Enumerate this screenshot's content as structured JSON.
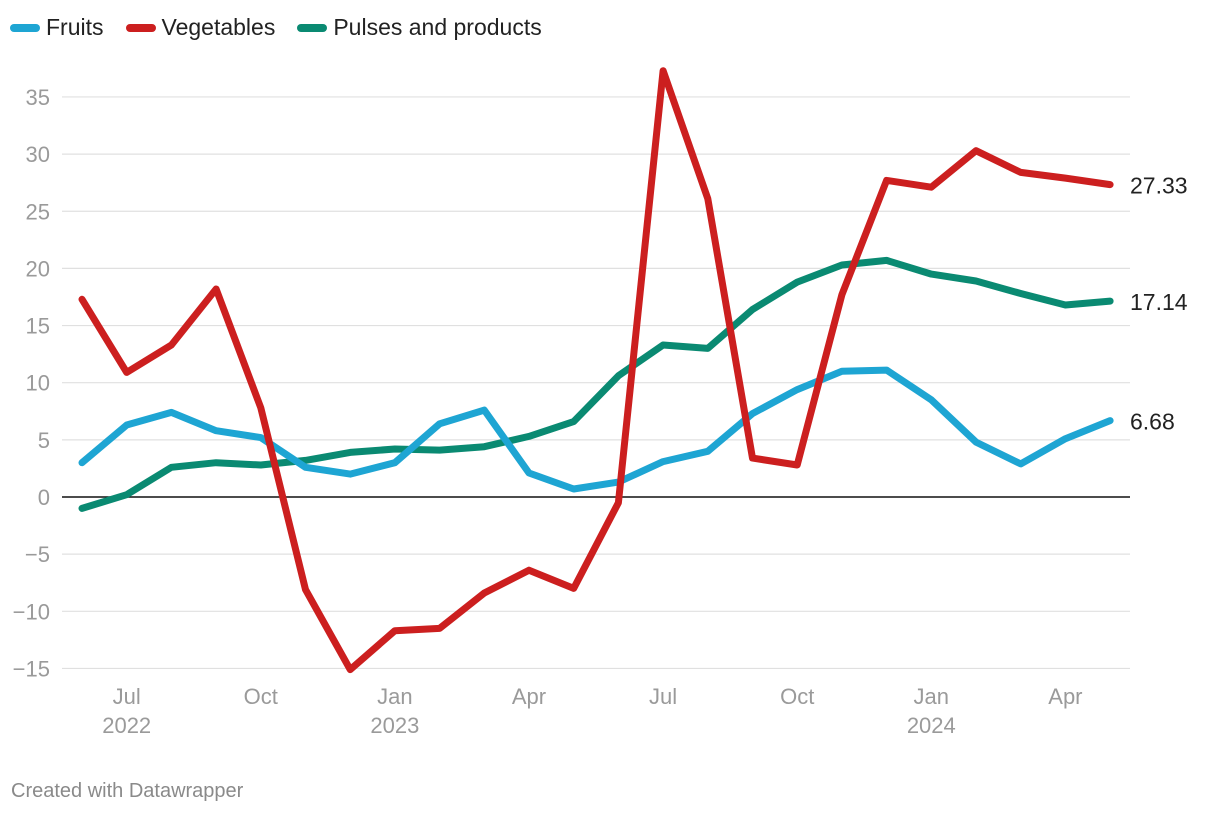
{
  "chart_data": {
    "type": "line",
    "title": "",
    "xlabel": "",
    "ylabel": "",
    "ylim": [
      -15,
      37.5
    ],
    "yticks": [
      35,
      30,
      25,
      20,
      15,
      10,
      5,
      0,
      -5,
      -10,
      -15
    ],
    "ytick_labels": [
      "35",
      "30",
      "25",
      "20",
      "15",
      "10",
      "5",
      "0",
      "−5",
      "−10",
      "−15"
    ],
    "x": [
      "2022-06",
      "2022-07",
      "2022-08",
      "2022-09",
      "2022-10",
      "2022-11",
      "2022-12",
      "2023-01",
      "2023-02",
      "2023-03",
      "2023-04",
      "2023-05",
      "2023-06",
      "2023-07",
      "2023-08",
      "2023-09",
      "2023-10",
      "2023-11",
      "2023-12",
      "2024-01",
      "2024-02",
      "2024-03",
      "2024-04",
      "2024-05"
    ],
    "xticks": [
      {
        "index": 1,
        "label": "Jul",
        "year": "2022"
      },
      {
        "index": 4,
        "label": "Oct",
        "year": ""
      },
      {
        "index": 7,
        "label": "Jan",
        "year": "2023"
      },
      {
        "index": 10,
        "label": "Apr",
        "year": ""
      },
      {
        "index": 13,
        "label": "Jul",
        "year": ""
      },
      {
        "index": 16,
        "label": "Oct",
        "year": ""
      },
      {
        "index": 19,
        "label": "Jan",
        "year": "2024"
      },
      {
        "index": 22,
        "label": "Apr",
        "year": ""
      }
    ],
    "series": [
      {
        "name": "Fruits",
        "color": "#1ea5d3",
        "end_label": "6.68",
        "values": [
          3.0,
          6.3,
          7.4,
          5.8,
          5.2,
          2.6,
          2.0,
          3.0,
          6.4,
          7.6,
          2.1,
          0.7,
          1.3,
          3.1,
          4.0,
          7.3,
          9.4,
          11.0,
          11.1,
          8.5,
          4.8,
          2.9,
          5.1,
          6.68
        ]
      },
      {
        "name": "Vegetables",
        "color": "#cc1f1f",
        "end_label": "27.33",
        "values": [
          17.3,
          10.9,
          13.3,
          18.2,
          7.8,
          -8.1,
          -15.1,
          -11.7,
          -11.5,
          -8.4,
          -6.4,
          -8.0,
          -0.5,
          37.3,
          26.1,
          3.4,
          2.8,
          17.7,
          27.7,
          27.1,
          30.3,
          28.4,
          27.9,
          27.33
        ]
      },
      {
        "name": "Pulses and products",
        "color": "#0a8a72",
        "end_label": "17.14",
        "values": [
          -1.0,
          0.2,
          2.6,
          3.0,
          2.8,
          3.2,
          3.9,
          4.2,
          4.1,
          4.4,
          5.3,
          6.6,
          10.6,
          13.3,
          13.0,
          16.4,
          18.8,
          20.3,
          20.7,
          19.5,
          18.9,
          17.8,
          16.8,
          17.14
        ]
      }
    ],
    "legend_position": "top-left",
    "grid": true
  },
  "footer": "Created with Datawrapper"
}
